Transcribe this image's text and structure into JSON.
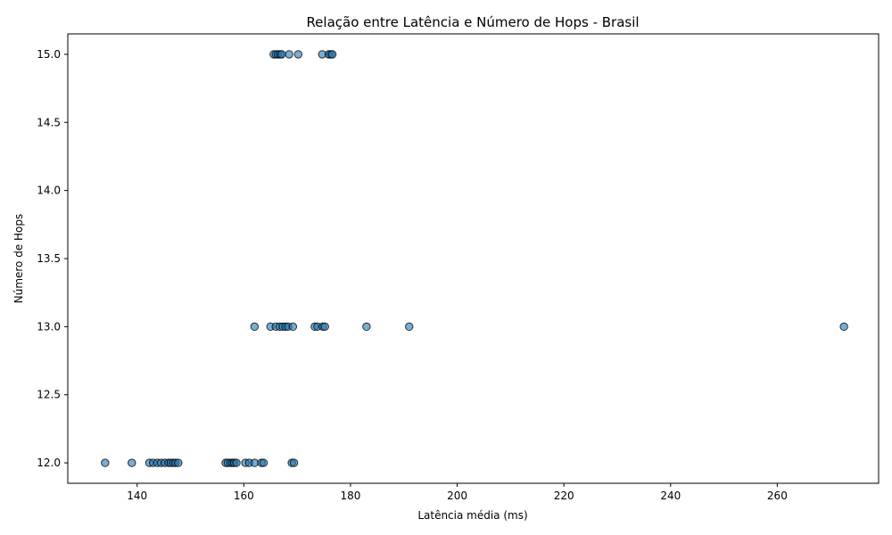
{
  "chart_data": {
    "type": "scatter",
    "title": "Relação entre Latência e Número de Hops - Brasil",
    "xlabel": "Latência média (ms)",
    "ylabel": "Número de Hops",
    "xlim": [
      127,
      279
    ],
    "ylim": [
      11.85,
      15.15
    ],
    "xticks": [
      140,
      160,
      180,
      200,
      220,
      240,
      260
    ],
    "xtick_labels": [
      "140",
      "160",
      "180",
      "200",
      "220",
      "240",
      "260"
    ],
    "yticks": [
      12.0,
      12.5,
      13.0,
      13.5,
      14.0,
      14.5,
      15.0
    ],
    "ytick_labels": [
      "12.0",
      "12.5",
      "13.0",
      "13.5",
      "14.0",
      "14.5",
      "15.0"
    ],
    "grid": false,
    "legend": "none",
    "marker_color": "#1f77b4",
    "marker_edge_color": "#000000",
    "marker_alpha": 0.6,
    "points": [
      {
        "x": 134.0,
        "y": 12
      },
      {
        "x": 139.0,
        "y": 12
      },
      {
        "x": 142.3,
        "y": 12
      },
      {
        "x": 143.0,
        "y": 12
      },
      {
        "x": 143.8,
        "y": 12
      },
      {
        "x": 144.5,
        "y": 12
      },
      {
        "x": 145.2,
        "y": 12
      },
      {
        "x": 145.9,
        "y": 12
      },
      {
        "x": 146.3,
        "y": 12
      },
      {
        "x": 146.8,
        "y": 12
      },
      {
        "x": 147.2,
        "y": 12
      },
      {
        "x": 147.7,
        "y": 12
      },
      {
        "x": 156.6,
        "y": 12
      },
      {
        "x": 157.0,
        "y": 12
      },
      {
        "x": 157.5,
        "y": 12
      },
      {
        "x": 157.9,
        "y": 12
      },
      {
        "x": 158.2,
        "y": 12
      },
      {
        "x": 158.6,
        "y": 12
      },
      {
        "x": 160.3,
        "y": 12
      },
      {
        "x": 161.0,
        "y": 12
      },
      {
        "x": 162.0,
        "y": 12
      },
      {
        "x": 163.3,
        "y": 12
      },
      {
        "x": 163.7,
        "y": 12
      },
      {
        "x": 169.0,
        "y": 12
      },
      {
        "x": 169.4,
        "y": 12
      },
      {
        "x": 162.0,
        "y": 13
      },
      {
        "x": 165.0,
        "y": 13
      },
      {
        "x": 166.0,
        "y": 13
      },
      {
        "x": 166.7,
        "y": 13
      },
      {
        "x": 167.3,
        "y": 13
      },
      {
        "x": 167.8,
        "y": 13
      },
      {
        "x": 168.3,
        "y": 13
      },
      {
        "x": 169.2,
        "y": 13
      },
      {
        "x": 173.3,
        "y": 13
      },
      {
        "x": 173.8,
        "y": 13
      },
      {
        "x": 174.8,
        "y": 13
      },
      {
        "x": 175.2,
        "y": 13
      },
      {
        "x": 183.0,
        "y": 13
      },
      {
        "x": 191.0,
        "y": 13
      },
      {
        "x": 272.5,
        "y": 13
      },
      {
        "x": 165.6,
        "y": 15
      },
      {
        "x": 166.0,
        "y": 15
      },
      {
        "x": 166.4,
        "y": 15
      },
      {
        "x": 166.8,
        "y": 15
      },
      {
        "x": 167.1,
        "y": 15
      },
      {
        "x": 168.5,
        "y": 15
      },
      {
        "x": 170.2,
        "y": 15
      },
      {
        "x": 174.7,
        "y": 15
      },
      {
        "x": 175.9,
        "y": 15
      },
      {
        "x": 176.3,
        "y": 15
      },
      {
        "x": 176.6,
        "y": 15
      }
    ]
  }
}
